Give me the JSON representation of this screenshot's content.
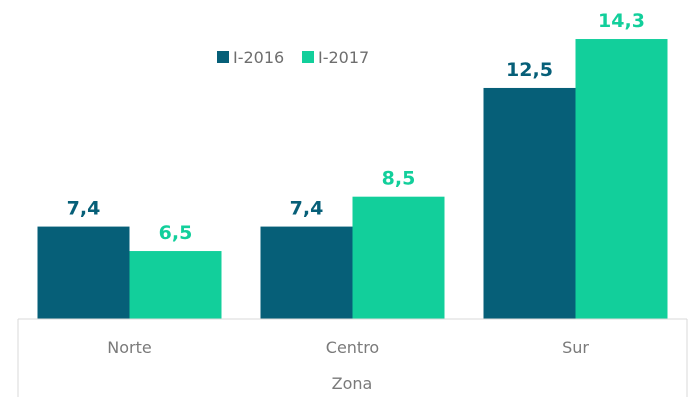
{
  "chart_data": {
    "type": "bar",
    "title": "",
    "xlabel": "Zona",
    "ylabel": "",
    "categories": [
      "Norte",
      "Centro",
      "Sur"
    ],
    "series": [
      {
        "name": "I-2016",
        "values": [
          7.4,
          7.4,
          12.5
        ],
        "labels": [
          "7,4",
          "7,4",
          "12,5"
        ],
        "color": "#065f78"
      },
      {
        "name": "I-2017",
        "values": [
          6.5,
          8.5,
          14.3
        ],
        "labels": [
          "6,5",
          "8,5",
          "14,3"
        ],
        "color": "#12cf9b"
      }
    ],
    "ylim": [
      4,
      15
    ],
    "grid": false,
    "legend": "top-left",
    "axis_line_color": "#d9d9d9"
  }
}
